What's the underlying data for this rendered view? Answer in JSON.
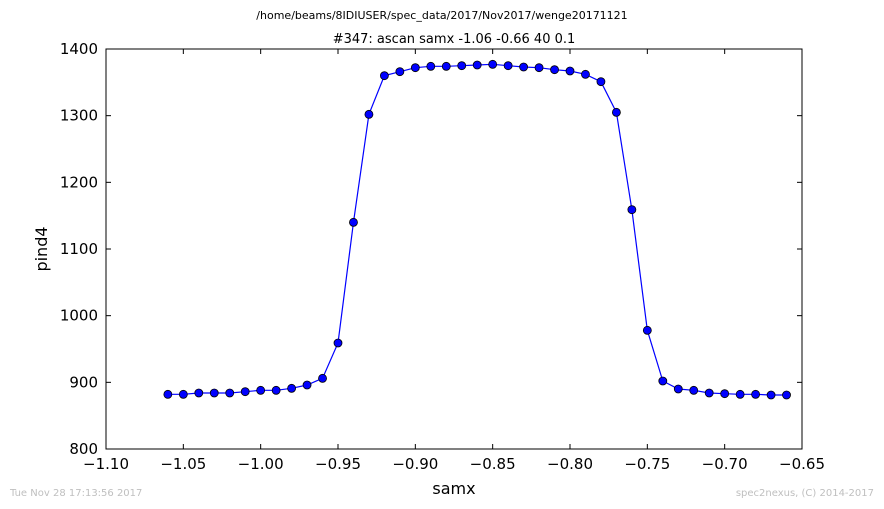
{
  "figure": {
    "suptitle": "/home/beams/8IDIUSER/spec_data/2017/Nov2017/wenge20171121",
    "footer_left": "Tue Nov 28 17:13:56 2017",
    "footer_right": "spec2nexus, (C) 2014-2017"
  },
  "chart_data": {
    "type": "line",
    "title": "#347: ascan  samx -1.06 -0.66  40 0.1",
    "xlabel": "samx",
    "ylabel": "pind4",
    "xlim": [
      -1.1,
      -0.65
    ],
    "ylim": [
      800,
      1400
    ],
    "xticks": [
      -1.1,
      -1.05,
      -1.0,
      -0.95,
      -0.9,
      -0.85,
      -0.8,
      -0.75,
      -0.7,
      -0.65
    ],
    "xtick_labels": [
      "−1.10",
      "−1.05",
      "−1.00",
      "−0.95",
      "−0.90",
      "−0.85",
      "−0.80",
      "−0.75",
      "−0.70",
      "−0.65"
    ],
    "yticks": [
      800,
      900,
      1000,
      1100,
      1200,
      1300,
      1400
    ],
    "ytick_labels": [
      "800",
      "900",
      "1000",
      "1100",
      "1200",
      "1300",
      "1400"
    ],
    "grid": false,
    "marker": "circle",
    "line_color": "#0000ff",
    "series": [
      {
        "x": [
          -1.06,
          -1.05,
          -1.04,
          -1.03,
          -1.02,
          -1.01,
          -1.0,
          -0.99,
          -0.98,
          -0.97,
          -0.96,
          -0.95,
          -0.94,
          -0.93,
          -0.92,
          -0.91,
          -0.9,
          -0.89,
          -0.88,
          -0.87,
          -0.86,
          -0.85,
          -0.84,
          -0.83,
          -0.82,
          -0.81,
          -0.8,
          -0.79,
          -0.78,
          -0.77,
          -0.76,
          -0.75,
          -0.74,
          -0.73,
          -0.72,
          -0.71,
          -0.7,
          -0.69,
          -0.68,
          -0.67,
          -0.66
        ],
        "y": [
          882,
          882,
          884,
          884,
          884,
          886,
          888,
          888,
          891,
          896,
          906,
          959,
          1140,
          1302,
          1360,
          1366,
          1372,
          1374,
          1374,
          1375,
          1376,
          1377,
          1375,
          1373,
          1372,
          1369,
          1367,
          1362,
          1351,
          1305,
          1159,
          978,
          902,
          890,
          888,
          884,
          883,
          882,
          882,
          881,
          881
        ]
      }
    ]
  }
}
